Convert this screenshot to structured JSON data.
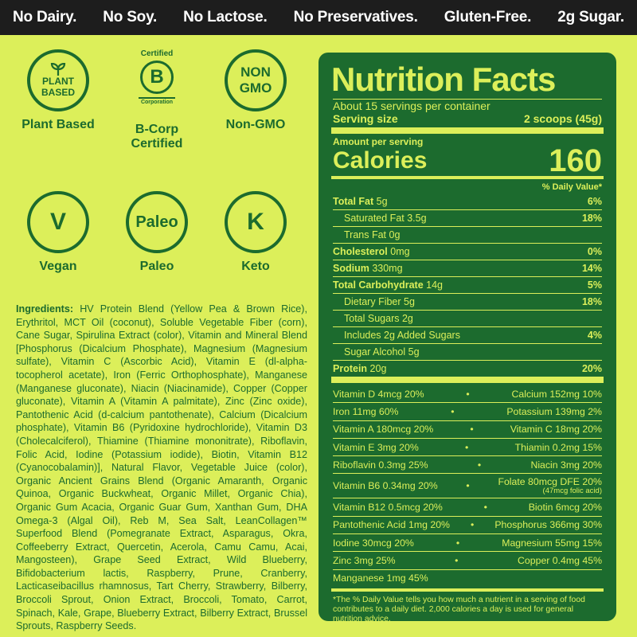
{
  "topbar": [
    "No Dairy.",
    "No Soy.",
    "No Lactose.",
    "No Preservatives.",
    "Gluten-Free.",
    "2g Sugar."
  ],
  "badges": {
    "plant": {
      "circle_lines": [
        "PLANT",
        "BASED"
      ],
      "label": "Plant Based"
    },
    "bcorp": {
      "certified": "Certified",
      "letter": "B",
      "corporation": "Corporation",
      "label": "B-Corp Certified"
    },
    "nongmo": {
      "circle_lines": [
        "NON",
        "GMO"
      ],
      "label": "Non-GMO"
    },
    "vegan": {
      "circle": "V",
      "label": "Vegan"
    },
    "paleo": {
      "circle": "Paleo",
      "label": "Paleo"
    },
    "keto": {
      "circle": "K",
      "label": "Keto"
    }
  },
  "ingredients": {
    "label": "Ingredients:",
    "text": "HV Protein Blend (Yellow Pea & Brown Rice), Erythritol, MCT Oil (coconut), Soluble Vegetable Fiber (corn), Cane Sugar, Spirulina Extract (color), Vitamin and Mineral Blend [Phosphorus (Dicalcium Phosphate), Magnesium (Magnesium sulfate), Vitamin C (Ascorbic Acid), Vitamin E (dl-alpha-tocopherol acetate), Iron (Ferric Orthophosphate), Manganese (Manganese gluconate), Niacin (Niacinamide), Copper (Copper gluconate), Vitamin A (Vitamin A palmitate), Zinc (Zinc oxide), Pantothenic Acid (d-calcium pantothenate), Calcium (Dicalcium phosphate), Vitamin B6 (Pyridoxine hydrochloride), Vitamin D3 (Cholecalciferol), Thiamine (Thiamine mononitrate), Riboflavin, Folic Acid, Iodine (Potassium iodide), Biotin, Vitamin B12 (Cyanocobalamin)], Natural Flavor, Vegetable Juice (color), Organic Ancient Grains Blend (Organic Amaranth, Organic Quinoa, Organic Buckwheat, Organic Millet, Organic Chia), Organic Gum Acacia, Organic Guar Gum, Xanthan Gum, DHA Omega-3 (Algal Oil), Reb M, Sea Salt, LeanCollagen™ Superfood Blend (Pomegranate Extract, Asparagus, Okra, Coffeeberry Extract, Quercetin, Acerola, Camu Camu, Acai, Mangosteen), Grape Seed Extract, Wild Blueberry, Bifidobacterium lactis, Raspberry, Prune, Cranberry, Lacticaseibacillus rhamnosus, Tart Cherry, Strawberry, Bilberry, Broccoli Sprout, Onion Extract, Broccoli, Tomato, Carrot, Spinach, Kale, Grape, Blueberry Extract, Bilberry Extract, Brussel Sprouts, Raspberry Seeds."
  },
  "nutrition": {
    "title": "Nutrition Facts",
    "servings": "About 15 servings per container",
    "serving_size_label": "Serving size",
    "serving_size_value": "2 scoops (45g)",
    "amount_per_serving": "Amount per serving",
    "calories_label": "Calories",
    "calories_value": "160",
    "dv_header": "% Daily Value*",
    "rows": [
      {
        "name": "Total Fat",
        "amount": "5g",
        "dv": "6%",
        "bold": true,
        "indent": 0
      },
      {
        "name": "Saturated Fat",
        "amount": "3.5g",
        "dv": "18%",
        "bold": false,
        "indent": 1
      },
      {
        "name": "Trans Fat",
        "amount": "0g",
        "dv": "",
        "bold": false,
        "indent": 1
      },
      {
        "name": "Cholesterol",
        "amount": "0mg",
        "dv": "0%",
        "bold": true,
        "indent": 0
      },
      {
        "name": "Sodium",
        "amount": "330mg",
        "dv": "14%",
        "bold": true,
        "indent": 0
      },
      {
        "name": "Total Carbohydrate",
        "amount": "14g",
        "dv": "5%",
        "bold": true,
        "indent": 0
      },
      {
        "name": "Dietary Fiber",
        "amount": "5g",
        "dv": "18%",
        "bold": false,
        "indent": 1
      },
      {
        "name": "Total Sugars",
        "amount": "2g",
        "dv": "",
        "bold": false,
        "indent": 1
      },
      {
        "name": "Includes 2g Added Sugars",
        "amount": "",
        "dv": "4%",
        "bold": false,
        "indent": 2
      },
      {
        "name": "Sugar Alcohol",
        "amount": "5g",
        "dv": "",
        "bold": false,
        "indent": 1
      },
      {
        "name": "Protein",
        "amount": "20g",
        "dv": "20%",
        "bold": true,
        "indent": 0
      }
    ],
    "vitamins": [
      {
        "left": "Vitamin D 4mcg 20%",
        "right": "Calcium 152mg 10%"
      },
      {
        "left": "Iron 11mg 60%",
        "right": "Potassium 139mg 2%"
      },
      {
        "left": "Vitamin A 180mcg 20%",
        "right": "Vitamin C 18mg 20%"
      },
      {
        "left": "Vitamin E 3mg 20%",
        "right": "Thiamin 0.2mg 15%"
      },
      {
        "left": "Riboflavin 0.3mg 25%",
        "right": "Niacin 3mg 20%"
      },
      {
        "left": "Vitamin B6 0.34mg 20%",
        "right": "Folate 80mcg DFE 20%",
        "right_sub": "(47mcg folic acid)"
      },
      {
        "left": "Vitamin B12 0.5mcg 20%",
        "right": "Biotin 6mcg 20%"
      },
      {
        "left": "Pantothenic Acid 1mg 20%",
        "right": "Phosphorus 366mg 30%"
      },
      {
        "left": "Iodine 30mcg 20%",
        "right": "Magnesium 55mg 15%"
      },
      {
        "left": "Zinc 3mg 25%",
        "right": "Copper 0.4mg 45%"
      },
      {
        "left": "Manganese 1mg 45%",
        "right": ""
      }
    ],
    "bullet": "•",
    "footnote": "*The % Daily Value tells you how much a nutrient in a serving of food contributes to a daily diet. 2,000 calories a day is used for general nutrition advice."
  }
}
